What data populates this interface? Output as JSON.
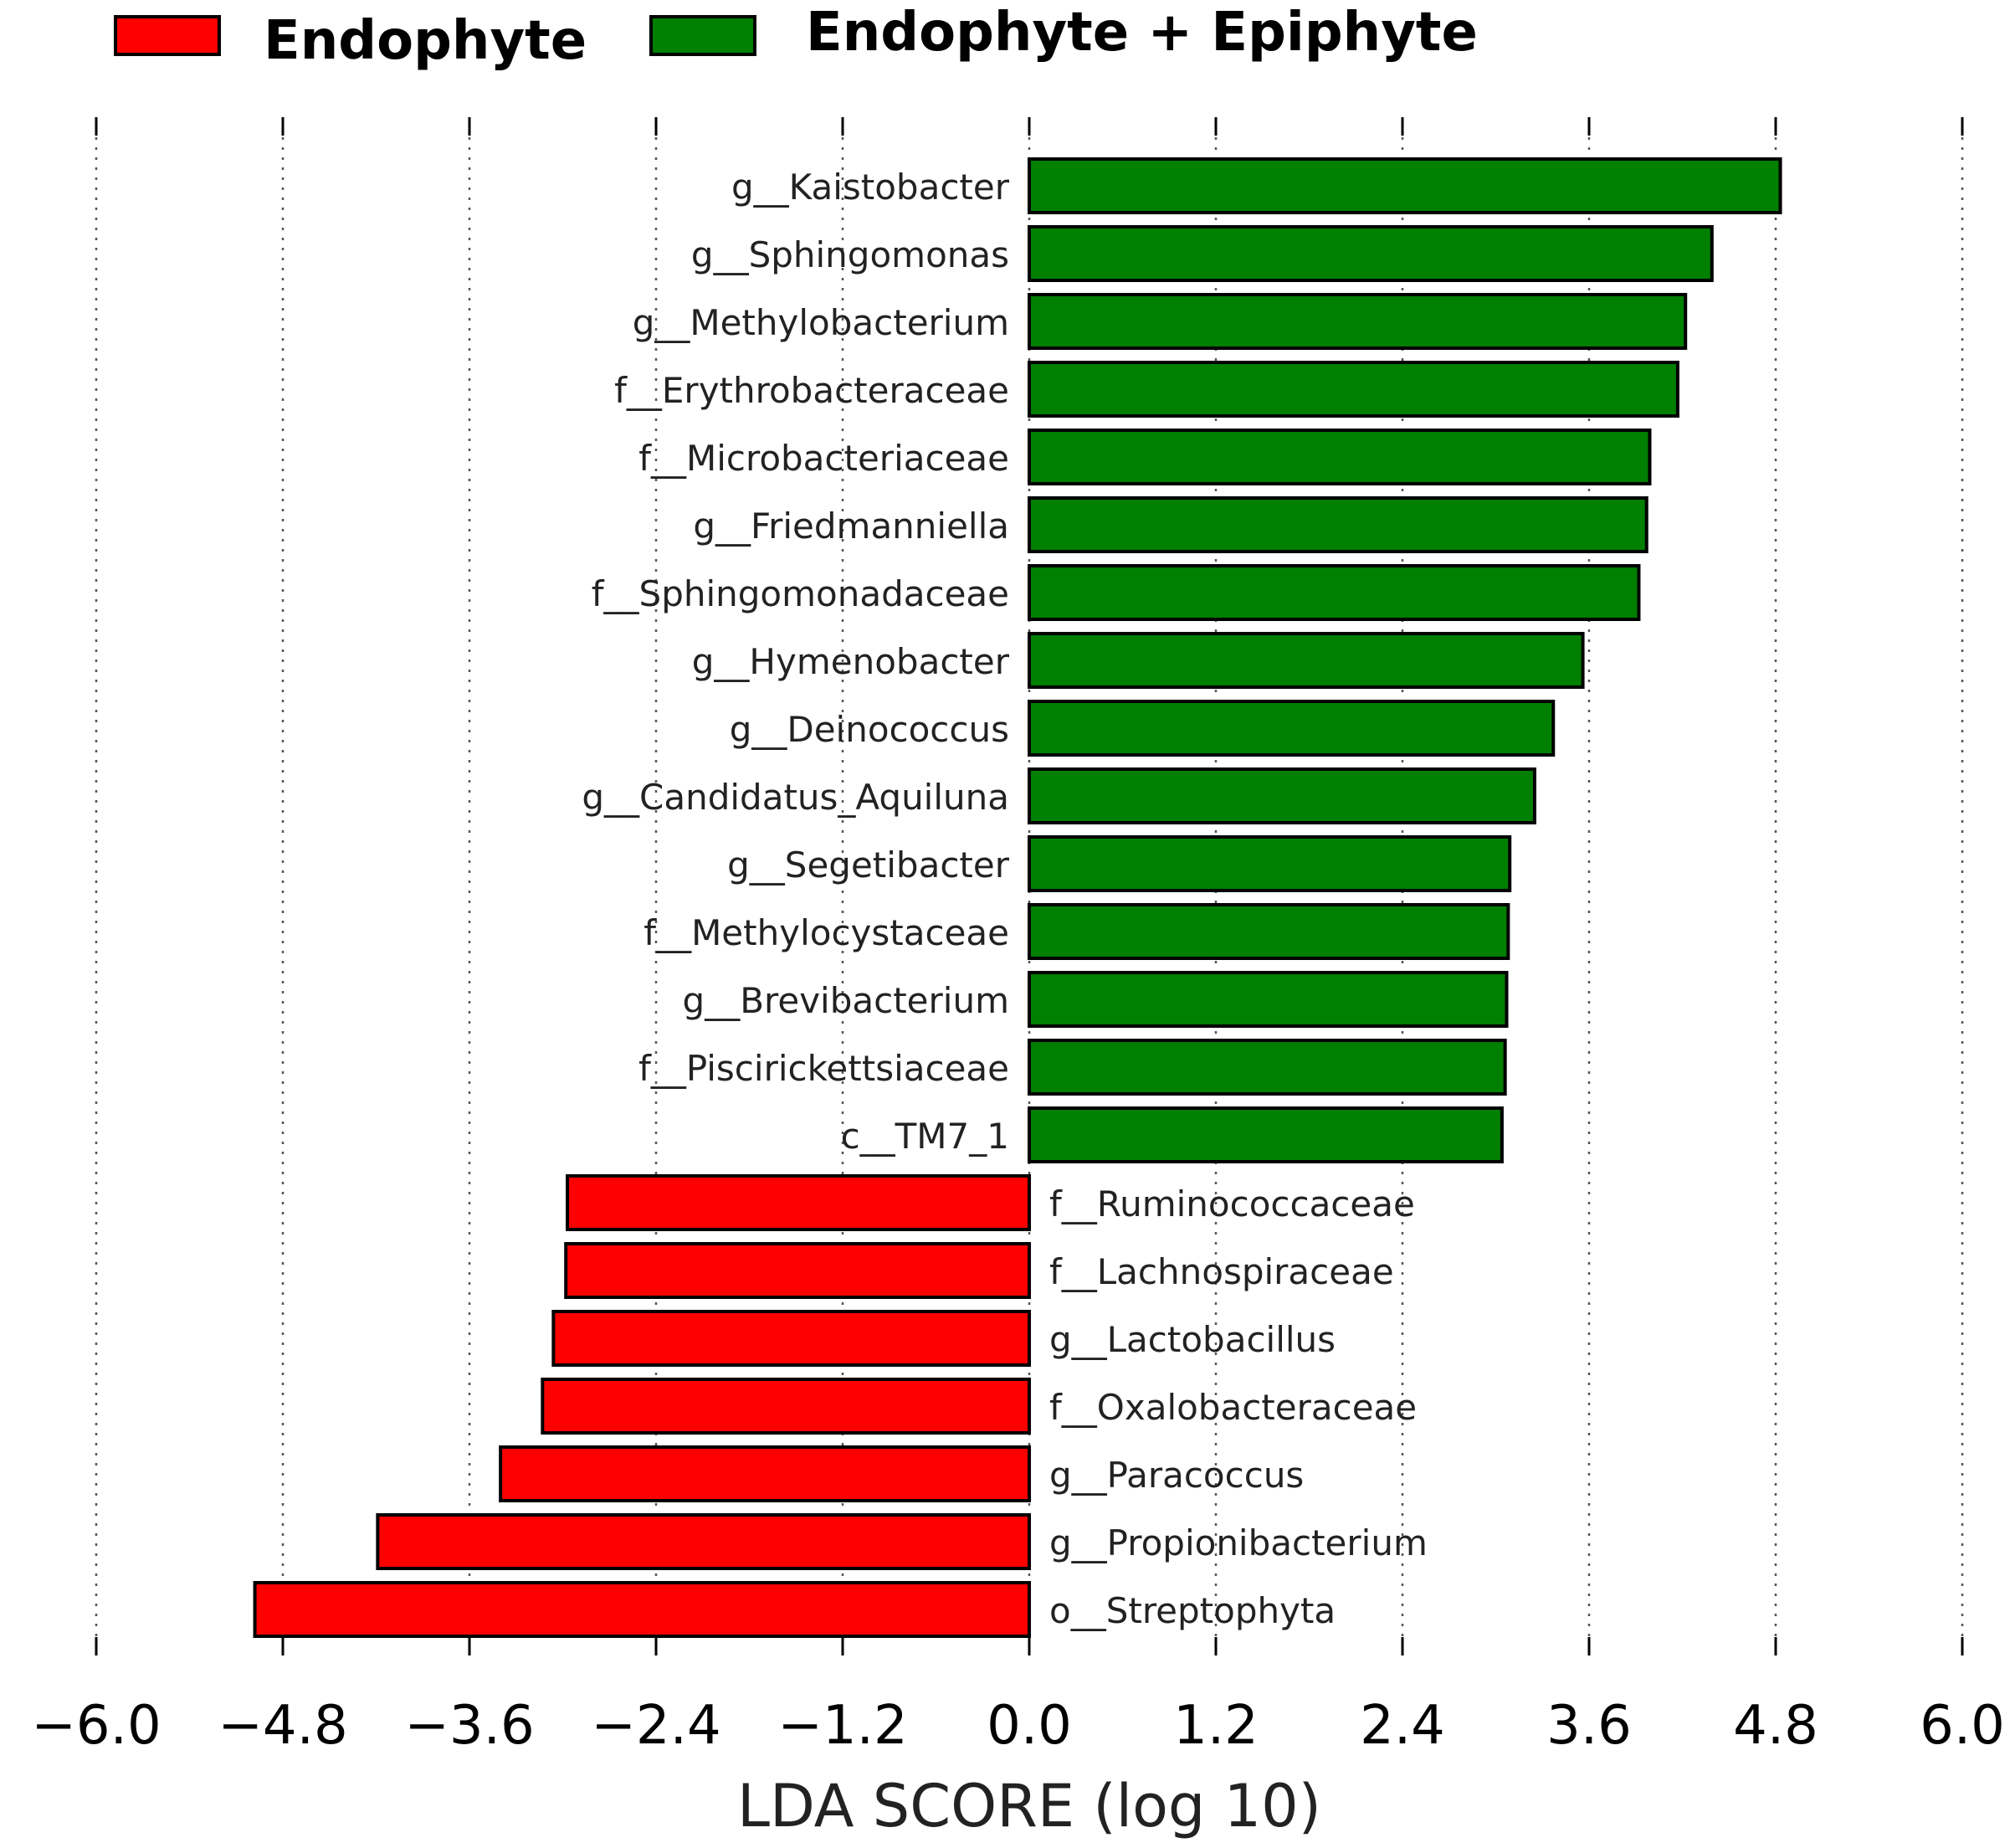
{
  "chart_data": {
    "type": "bar",
    "orientation": "horizontal",
    "xlabel": "LDA SCORE (log 10)",
    "xlim": [
      -6.0,
      6.0
    ],
    "xticks": [
      "−6.0",
      "−4.8",
      "−3.6",
      "−2.4",
      "−1.2",
      "0.0",
      "1.2",
      "2.4",
      "3.6",
      "4.8",
      "6.0"
    ],
    "grid": "vertical-dotted",
    "legend": [
      {
        "name": "Endophyte",
        "color": "#ff0000"
      },
      {
        "name": "Endophyte + Epiphyte",
        "color": "#007f00"
      }
    ],
    "bars": [
      {
        "label": "g__Kaistobacter",
        "value": 4.83,
        "group": "Endophyte + Epiphyte"
      },
      {
        "label": "g__Sphingomonas",
        "value": 4.39,
        "group": "Endophyte + Epiphyte"
      },
      {
        "label": "g__Methylobacterium",
        "value": 4.22,
        "group": "Endophyte + Epiphyte"
      },
      {
        "label": "f__Erythrobacteraceae",
        "value": 4.17,
        "group": "Endophyte + Epiphyte"
      },
      {
        "label": "f__Microbacteriaceae",
        "value": 3.99,
        "group": "Endophyte + Epiphyte"
      },
      {
        "label": "g__Friedmanniella",
        "value": 3.97,
        "group": "Endophyte + Epiphyte"
      },
      {
        "label": "f__Sphingomonadaceae",
        "value": 3.92,
        "group": "Endophyte + Epiphyte"
      },
      {
        "label": "g__Hymenobacter",
        "value": 3.56,
        "group": "Endophyte + Epiphyte"
      },
      {
        "label": "g__Deinococcus",
        "value": 3.37,
        "group": "Endophyte + Epiphyte"
      },
      {
        "label": "g__Candidatus_Aquiluna",
        "value": 3.25,
        "group": "Endophyte + Epiphyte"
      },
      {
        "label": "g__Segetibacter",
        "value": 3.09,
        "group": "Endophyte + Epiphyte"
      },
      {
        "label": "f__Methylocystaceae",
        "value": 3.08,
        "group": "Endophyte + Epiphyte"
      },
      {
        "label": "g__Brevibacterium",
        "value": 3.07,
        "group": "Endophyte + Epiphyte"
      },
      {
        "label": "f__Piscirickettsiaceae",
        "value": 3.06,
        "group": "Endophyte + Epiphyte"
      },
      {
        "label": "c__TM7_1",
        "value": 3.04,
        "group": "Endophyte + Epiphyte"
      },
      {
        "label": "f__Ruminococcaceae",
        "value": -2.97,
        "group": "Endophyte"
      },
      {
        "label": "f__Lachnospiraceae",
        "value": -2.98,
        "group": "Endophyte"
      },
      {
        "label": "g__Lactobacillus",
        "value": -3.06,
        "group": "Endophyte"
      },
      {
        "label": "f__Oxalobacteraceae",
        "value": -3.13,
        "group": "Endophyte"
      },
      {
        "label": "g__Paracoccus",
        "value": -3.4,
        "group": "Endophyte"
      },
      {
        "label": "g__Propionibacterium",
        "value": -4.19,
        "group": "Endophyte"
      },
      {
        "label": "o__Streptophyta",
        "value": -4.98,
        "group": "Endophyte"
      }
    ]
  }
}
